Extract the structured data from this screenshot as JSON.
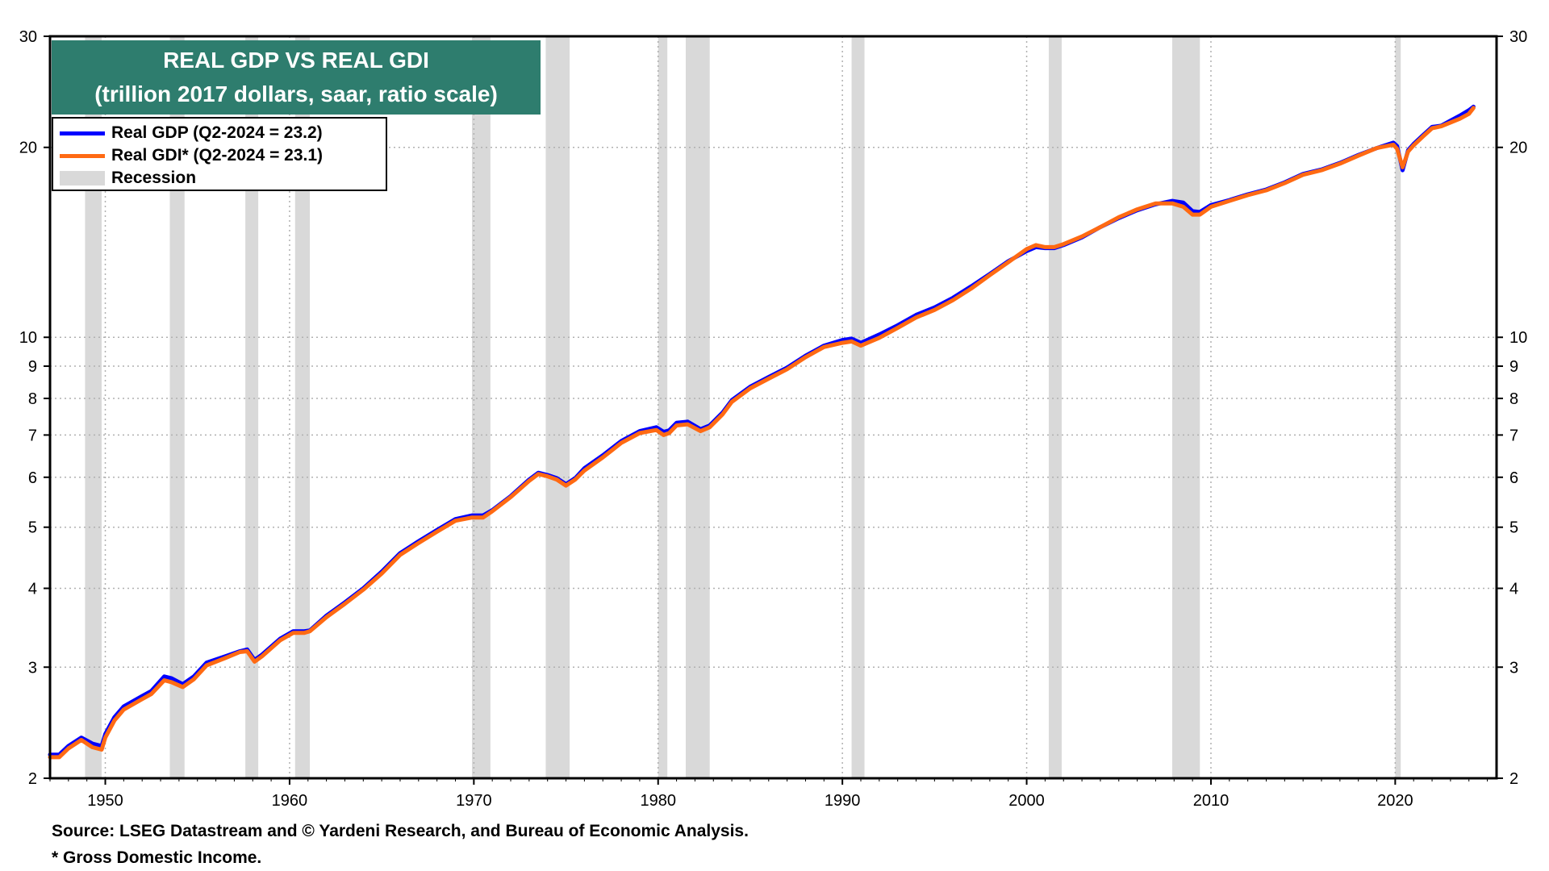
{
  "title": {
    "line1": "REAL GDP VS REAL GDI",
    "line2": "(trillion 2017 dollars, saar, ratio scale)"
  },
  "legend": {
    "gdp_label": "Real GDP (Q2-2024 = 23.2)",
    "gdi_label": "Real GDI* (Q2-2024 = 23.1)",
    "recession_label": "Recession"
  },
  "footer": {
    "source": "Source: LSEG Datastream and © Yardeni Research, and Bureau of Economic Analysis.",
    "note": "* Gross Domestic Income."
  },
  "colors": {
    "gdp": "#0000ff",
    "gdi": "#ff6a13",
    "recession": "#d9d9d9",
    "title_bg": "#2e7d6e"
  },
  "chart_data": {
    "type": "line",
    "scale": "log",
    "xlim": [
      1947,
      2025.5
    ],
    "ylim": [
      2,
      30
    ],
    "y_ticks": [
      "2",
      "3",
      "4",
      "5",
      "6",
      "7",
      "8",
      "9",
      "10",
      "20",
      "30"
    ],
    "x_ticks": [
      "1950",
      "1960",
      "1970",
      "1980",
      "1990",
      "2000",
      "2010",
      "2020"
    ],
    "grid": true,
    "recessions": [
      [
        1948.9,
        1949.8
      ],
      [
        1953.5,
        1954.3
      ],
      [
        1957.6,
        1958.3
      ],
      [
        1960.3,
        1961.1
      ],
      [
        1969.9,
        1970.9
      ],
      [
        1973.9,
        1975.2
      ],
      [
        1980.0,
        1980.5
      ],
      [
        1981.5,
        1982.8
      ],
      [
        1990.5,
        1991.2
      ],
      [
        2001.2,
        2001.9
      ],
      [
        2007.9,
        2009.4
      ],
      [
        2020.0,
        2020.3
      ]
    ],
    "series": [
      {
        "name": "Real GDP",
        "x": [
          1947,
          1947.5,
          1948,
          1948.7,
          1949.3,
          1949.8,
          1950,
          1950.5,
          1951,
          1952,
          1952.5,
          1953.2,
          1953.6,
          1954.2,
          1954.8,
          1955.5,
          1956.5,
          1957.3,
          1957.7,
          1958.1,
          1958.5,
          1959.5,
          1960.2,
          1960.8,
          1961.1,
          1962,
          1963,
          1964,
          1965,
          1966,
          1967,
          1968,
          1969,
          1969.9,
          1970.5,
          1971,
          1972,
          1973,
          1973.5,
          1974,
          1974.5,
          1975,
          1975.5,
          1976,
          1977,
          1978,
          1979,
          1979.9,
          1980.3,
          1980.6,
          1981,
          1981.6,
          1982.3,
          1982.8,
          1983.5,
          1984,
          1985,
          1986,
          1987,
          1988,
          1989,
          1990,
          1990.5,
          1991,
          1992,
          1993,
          1994,
          1995,
          1996,
          1997,
          1998,
          1999,
          2000,
          2000.5,
          2001,
          2001.5,
          2002,
          2003,
          2004,
          2005,
          2006,
          2007,
          2007.9,
          2008.5,
          2009,
          2009.4,
          2010,
          2011,
          2012,
          2013,
          2014,
          2015,
          2016,
          2017,
          2018,
          2019,
          2019.9,
          2020.1,
          2020.4,
          2020.7,
          2021,
          2021.5,
          2022,
          2022.5,
          2023,
          2023.5,
          2024,
          2024.25
        ],
        "values": [
          2.18,
          2.18,
          2.25,
          2.32,
          2.27,
          2.25,
          2.35,
          2.5,
          2.6,
          2.7,
          2.75,
          2.9,
          2.88,
          2.82,
          2.9,
          3.05,
          3.12,
          3.18,
          3.2,
          3.08,
          3.14,
          3.33,
          3.42,
          3.42,
          3.43,
          3.62,
          3.8,
          4.0,
          4.25,
          4.55,
          4.75,
          4.95,
          5.15,
          5.22,
          5.22,
          5.32,
          5.6,
          5.95,
          6.1,
          6.05,
          5.98,
          5.85,
          5.98,
          6.2,
          6.5,
          6.85,
          7.1,
          7.2,
          7.08,
          7.12,
          7.32,
          7.35,
          7.15,
          7.25,
          7.6,
          7.95,
          8.35,
          8.65,
          8.95,
          9.35,
          9.7,
          9.9,
          9.95,
          9.8,
          10.1,
          10.45,
          10.85,
          11.15,
          11.55,
          12.05,
          12.6,
          13.2,
          13.7,
          13.9,
          13.85,
          13.85,
          14.0,
          14.4,
          14.95,
          15.45,
          15.9,
          16.25,
          16.45,
          16.35,
          15.85,
          15.8,
          16.2,
          16.5,
          16.85,
          17.15,
          17.6,
          18.15,
          18.45,
          18.9,
          19.45,
          19.95,
          20.35,
          20.1,
          18.4,
          19.8,
          20.25,
          20.9,
          21.55,
          21.65,
          22.05,
          22.45,
          22.9,
          23.2
        ]
      },
      {
        "name": "Real GDI",
        "x": [
          1947,
          1947.5,
          1948,
          1948.7,
          1949.3,
          1949.8,
          1950,
          1950.5,
          1951,
          1952,
          1952.5,
          1953.2,
          1953.6,
          1954.2,
          1954.8,
          1955.5,
          1956.5,
          1957.3,
          1957.7,
          1958.1,
          1958.5,
          1959.5,
          1960.2,
          1960.8,
          1961.1,
          1962,
          1963,
          1964,
          1965,
          1966,
          1967,
          1968,
          1969,
          1969.9,
          1970.5,
          1971,
          1972,
          1973,
          1973.5,
          1974,
          1974.5,
          1975,
          1975.5,
          1976,
          1977,
          1978,
          1979,
          1979.9,
          1980.3,
          1980.6,
          1981,
          1981.6,
          1982.3,
          1982.8,
          1983.5,
          1984,
          1985,
          1986,
          1987,
          1988,
          1989,
          1990,
          1990.5,
          1991,
          1992,
          1993,
          1994,
          1995,
          1996,
          1997,
          1998,
          1999,
          2000,
          2000.5,
          2001,
          2001.5,
          2002,
          2003,
          2004,
          2005,
          2006,
          2007,
          2007.9,
          2008.5,
          2009,
          2009.4,
          2010,
          2011,
          2012,
          2013,
          2014,
          2015,
          2016,
          2017,
          2018,
          2019,
          2019.9,
          2020.1,
          2020.4,
          2020.7,
          2021,
          2021.5,
          2022,
          2022.5,
          2023,
          2023.5,
          2024,
          2024.25
        ],
        "values": [
          2.16,
          2.16,
          2.23,
          2.3,
          2.24,
          2.22,
          2.32,
          2.47,
          2.57,
          2.67,
          2.72,
          2.86,
          2.84,
          2.79,
          2.87,
          3.02,
          3.1,
          3.17,
          3.18,
          3.06,
          3.12,
          3.31,
          3.4,
          3.4,
          3.42,
          3.6,
          3.78,
          3.98,
          4.22,
          4.52,
          4.72,
          4.92,
          5.12,
          5.18,
          5.18,
          5.3,
          5.58,
          5.92,
          6.07,
          6.02,
          5.95,
          5.82,
          5.95,
          6.15,
          6.45,
          6.8,
          7.05,
          7.13,
          7.0,
          7.05,
          7.25,
          7.28,
          7.1,
          7.2,
          7.55,
          7.9,
          8.3,
          8.6,
          8.9,
          9.3,
          9.65,
          9.8,
          9.85,
          9.7,
          9.98,
          10.35,
          10.75,
          11.05,
          11.45,
          11.95,
          12.55,
          13.15,
          13.8,
          14.0,
          13.9,
          13.9,
          14.05,
          14.45,
          14.95,
          15.5,
          15.95,
          16.3,
          16.3,
          16.1,
          15.65,
          15.65,
          16.1,
          16.45,
          16.8,
          17.1,
          17.55,
          18.1,
          18.4,
          18.85,
          19.4,
          19.95,
          20.2,
          19.9,
          18.6,
          19.7,
          20.15,
          20.8,
          21.45,
          21.6,
          21.9,
          22.2,
          22.6,
          23.1
        ]
      }
    ]
  }
}
